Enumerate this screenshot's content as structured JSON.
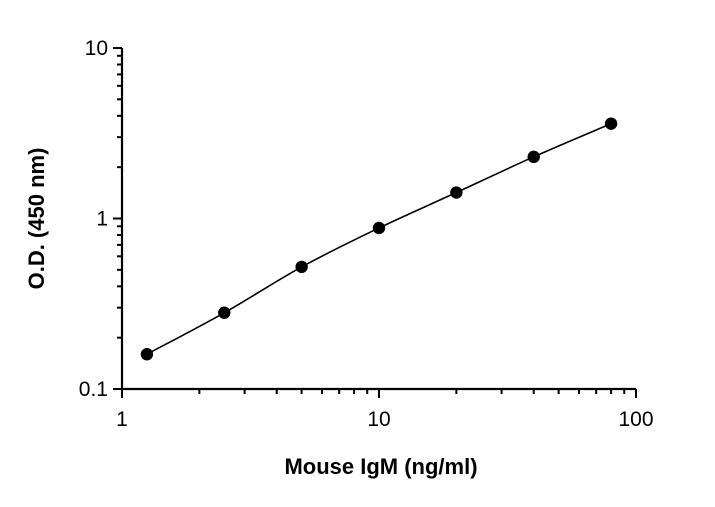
{
  "chart_data": {
    "type": "scatter",
    "title": "",
    "xlabel": "Mouse IgM (ng/ml)",
    "ylabel": "O.D. (450 nm)",
    "x_scale": "log",
    "y_scale": "log",
    "xlim": [
      1,
      100
    ],
    "ylim": [
      0.1,
      10
    ],
    "x_tick_labels": [
      "1",
      "10",
      "100"
    ],
    "y_tick_labels": [
      "0.1",
      "1",
      "10"
    ],
    "grid": false,
    "legend": "none",
    "series": [
      {
        "x": [
          1.25,
          2.5,
          5,
          10,
          20,
          40,
          80
        ],
        "y": [
          0.16,
          0.28,
          0.52,
          0.88,
          1.42,
          2.3,
          3.6
        ],
        "marker_color": "#000000",
        "fit_curve": true
      }
    ]
  }
}
